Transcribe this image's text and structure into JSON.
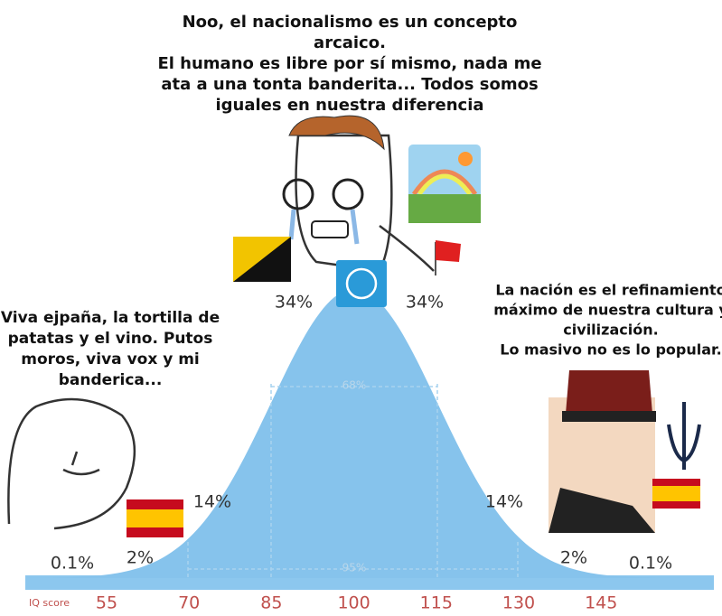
{
  "captions": {
    "center": [
      "Noo, el nacionalismo es un concepto",
      "arcaico.",
      "El humano es libre por sí mismo, nada me",
      "ata a una tonta banderita... Todos somos",
      "iguales en nuestra diferencia"
    ],
    "left": [
      "Viva ejpaña, la tortilla de",
      "patatas y el vino. Putos",
      "moros, viva vox y mi",
      "banderica..."
    ],
    "right": [
      "La nación es el refinamiento",
      "máximo de nuestra cultura y",
      "civilización.",
      "Lo masivo no es lo popular."
    ]
  },
  "curve": {
    "percent_labels": [
      "0.1%",
      "2%",
      "14%",
      "34%",
      "34%",
      "14%",
      "2%",
      "0.1%"
    ],
    "band_labels": [
      "68%",
      "95%"
    ]
  },
  "axis": {
    "label": "IQ score",
    "ticks": [
      "55",
      "70",
      "85",
      "100",
      "115",
      "130",
      "145"
    ]
  }
}
